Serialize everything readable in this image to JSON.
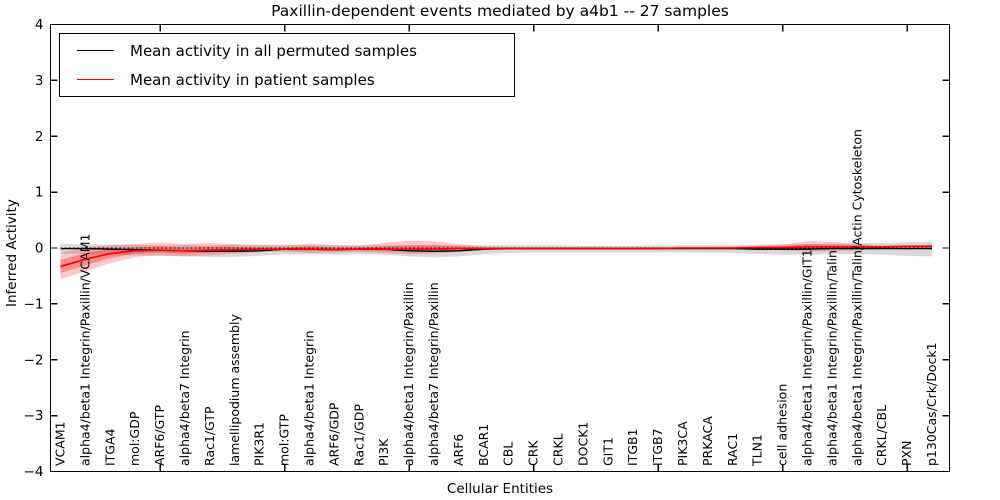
{
  "title": "Paxillin-dependent events mediated by a4b1 -- 27 samples",
  "legend": {
    "entries": [
      {
        "label": "Mean activity in all permuted samples",
        "color": "#000000"
      },
      {
        "label": "Mean activity in patient samples",
        "color": "#ff0000"
      }
    ]
  },
  "chart_data": {
    "type": "line",
    "title": "Paxillin-dependent events mediated by a4b1 -- 27 samples",
    "xlabel": "Cellular Entities",
    "ylabel": "Inferred Activity",
    "ylim": [
      -4,
      4
    ],
    "yticks": [
      -4,
      -3,
      -2,
      -1,
      0,
      1,
      2,
      3,
      4
    ],
    "ytick_labels": [
      "−4",
      "−3",
      "−2",
      "−1",
      "0",
      "1",
      "2",
      "3",
      "4"
    ],
    "grid": false,
    "legend_position": "upper left",
    "zero_line": "dotted",
    "x_major_tick_indices": [
      4,
      9,
      14,
      19,
      24,
      29,
      34
    ],
    "categories": [
      "VCAM1",
      "alpha4/beta1 Integrin/Paxillin/VCAM1",
      "ITGA4",
      "mol:GDP",
      "ARF6/GTP",
      "alpha4/beta7 Integrin",
      "Rac1/GTP",
      "lamellipodium assembly",
      "PIK3R1",
      "mol:GTP",
      "alpha4/beta1 Integrin",
      "ARF6/GDP",
      "Rac1/GDP",
      "PI3K",
      "alpha4/beta1 Integrin/Paxillin",
      "alpha4/beta7 Integrin/Paxillin",
      "ARF6",
      "BCAR1",
      "CBL",
      "CRK",
      "CRKL",
      "DOCK1",
      "GIT1",
      "ITGB1",
      "ITGB7",
      "PIK3CA",
      "PRKACA",
      "RAC1",
      "TLN1",
      "cell adhesion",
      "alpha4/beta1 Integrin/Paxillin/GIT1",
      "alpha4/beta1 Integrin/Paxillin/Talin",
      "alpha4/beta1 Integrin/Paxillin/Talin/Actin Cytoskeleton",
      "CRKL/CBL",
      "PXN",
      "p130Cas/Crk/Dock1"
    ],
    "series": [
      {
        "name": "Mean activity in all permuted samples",
        "color": "#000000",
        "band_color": "rgba(0,0,0,0.15)",
        "values": [
          -0.01,
          -0.01,
          -0.02,
          -0.03,
          -0.04,
          -0.05,
          -0.06,
          -0.06,
          -0.05,
          -0.02,
          -0.02,
          -0.03,
          -0.02,
          -0.02,
          -0.05,
          -0.06,
          -0.05,
          -0.02,
          -0.01,
          -0.01,
          -0.01,
          -0.01,
          -0.01,
          -0.01,
          -0.01,
          -0.01,
          -0.01,
          -0.01,
          -0.02,
          -0.02,
          -0.02,
          -0.01,
          -0.01,
          -0.01,
          -0.01,
          -0.01
        ],
        "band_upper": [
          0.07,
          0.07,
          0.06,
          0.06,
          0.05,
          0.05,
          0.05,
          0.06,
          0.06,
          0.06,
          0.05,
          0.05,
          0.05,
          0.05,
          0.05,
          0.05,
          0.05,
          0.05,
          0.05,
          0.05,
          0.05,
          0.04,
          0.04,
          0.04,
          0.05,
          0.05,
          0.05,
          0.05,
          0.06,
          0.07,
          0.07,
          0.07,
          0.08,
          0.09,
          0.1,
          0.11
        ],
        "band_lower": [
          -0.1,
          -0.11,
          -0.12,
          -0.13,
          -0.14,
          -0.15,
          -0.16,
          -0.16,
          -0.14,
          -0.11,
          -0.11,
          -0.12,
          -0.11,
          -0.12,
          -0.15,
          -0.17,
          -0.15,
          -0.11,
          -0.09,
          -0.08,
          -0.08,
          -0.08,
          -0.08,
          -0.08,
          -0.08,
          -0.08,
          -0.09,
          -0.09,
          -0.11,
          -0.12,
          -0.12,
          -0.11,
          -0.11,
          -0.12,
          -0.14,
          -0.15
        ]
      },
      {
        "name": "Mean activity in patient samples",
        "color": "#ff0000",
        "band_color": "rgba(255,0,0,0.22)",
        "inner_band_color": "rgba(255,0,0,0.30)",
        "values": [
          -0.33,
          -0.2,
          -0.1,
          -0.05,
          -0.04,
          -0.05,
          -0.04,
          -0.03,
          -0.02,
          -0.02,
          -0.02,
          -0.03,
          -0.02,
          -0.02,
          -0.02,
          -0.02,
          -0.01,
          -0.01,
          -0.01,
          -0.01,
          -0.01,
          -0.01,
          -0.01,
          -0.01,
          -0.01,
          0.0,
          0.0,
          0.0,
          0.01,
          0.01,
          0.02,
          0.02,
          0.02,
          0.02,
          0.03,
          0.03
        ],
        "band_upper": [
          -0.09,
          0.02,
          0.05,
          0.07,
          0.1,
          0.07,
          0.09,
          0.07,
          0.05,
          0.04,
          0.08,
          0.05,
          0.04,
          0.09,
          0.13,
          0.12,
          0.07,
          0.03,
          0.02,
          0.02,
          0.02,
          0.02,
          0.02,
          0.02,
          0.02,
          0.02,
          0.02,
          0.03,
          0.04,
          0.06,
          0.12,
          0.11,
          0.08,
          0.05,
          0.05,
          0.06
        ],
        "band_lower": [
          -0.56,
          -0.42,
          -0.27,
          -0.16,
          -0.13,
          -0.15,
          -0.13,
          -0.1,
          -0.07,
          -0.06,
          -0.09,
          -0.08,
          -0.07,
          -0.09,
          -0.11,
          -0.1,
          -0.07,
          -0.04,
          -0.03,
          -0.03,
          -0.03,
          -0.03,
          -0.03,
          -0.03,
          -0.03,
          -0.03,
          -0.03,
          -0.03,
          -0.03,
          -0.04,
          -0.06,
          -0.06,
          -0.04,
          -0.02,
          -0.01,
          -0.01
        ],
        "band_inner_upper": [
          -0.21,
          -0.09,
          -0.02,
          0.01,
          0.03,
          0.01,
          0.02,
          0.02,
          0.01,
          0.01,
          0.03,
          0.01,
          0.01,
          0.03,
          0.05,
          0.05,
          0.03,
          0.01,
          0.0,
          0.0,
          0.0,
          0.0,
          0.0,
          0.0,
          0.0,
          0.01,
          0.01,
          0.01,
          0.02,
          0.03,
          0.07,
          0.06,
          0.05,
          0.03,
          0.04,
          0.04
        ],
        "band_inner_lower": [
          -0.45,
          -0.31,
          -0.18,
          -0.1,
          -0.08,
          -0.1,
          -0.08,
          -0.06,
          -0.04,
          -0.04,
          -0.05,
          -0.05,
          -0.04,
          -0.05,
          -0.06,
          -0.06,
          -0.04,
          -0.02,
          -0.02,
          -0.02,
          -0.02,
          -0.02,
          -0.02,
          -0.02,
          -0.02,
          -0.01,
          -0.01,
          -0.01,
          -0.01,
          -0.01,
          -0.02,
          -0.02,
          -0.01,
          0.0,
          0.01,
          0.01
        ]
      }
    ]
  }
}
